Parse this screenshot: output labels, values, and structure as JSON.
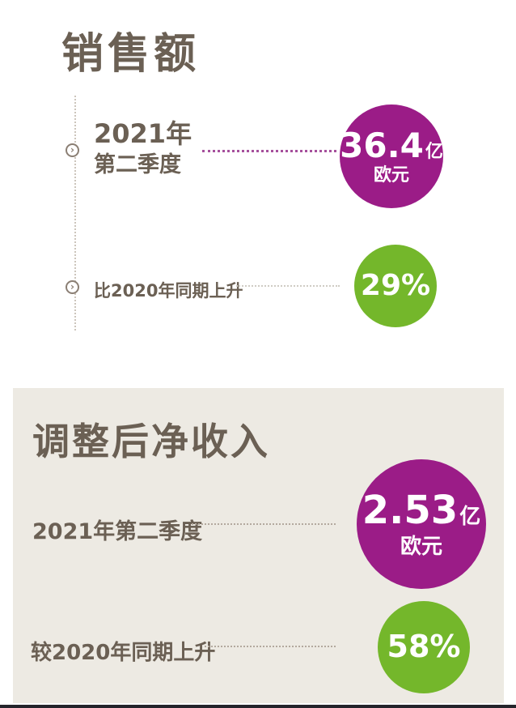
{
  "colors": {
    "accent_purple": "#9b1c87",
    "accent_green": "#74b72b",
    "text_brown": "#6b6054",
    "panel_beige": "#edeae3",
    "dotted_magenta": "#a6509c"
  },
  "icons": {
    "bullet_glyph": "›"
  },
  "sales": {
    "title": "销售额",
    "row1": {
      "label_line1": "2021年",
      "label_line2": "第二季度",
      "value": "36.4",
      "unit": "亿",
      "currency": "欧元"
    },
    "row2": {
      "label": "比2020年同期上升",
      "value": "29%"
    }
  },
  "net_income": {
    "title": "调整后净收入",
    "row1": {
      "label": "2021年第二季度",
      "value": "2.53",
      "unit": "亿",
      "currency": "欧元"
    },
    "row2": {
      "label": "较2020年同期上升",
      "value": "58%"
    }
  },
  "chart_data": {
    "type": "table",
    "title": "销售额与调整后净收入 2021年第二季度",
    "sections": [
      {
        "title": "销售额",
        "rows": [
          {
            "label": "2021年第二季度",
            "value": 36.4,
            "unit": "亿欧元"
          },
          {
            "label": "比2020年同期上升",
            "value": 29,
            "unit": "%"
          }
        ]
      },
      {
        "title": "调整后净收入",
        "rows": [
          {
            "label": "2021年第二季度",
            "value": 2.53,
            "unit": "亿欧元"
          },
          {
            "label": "较2020年同期上升",
            "value": 58,
            "unit": "%"
          }
        ]
      }
    ]
  }
}
